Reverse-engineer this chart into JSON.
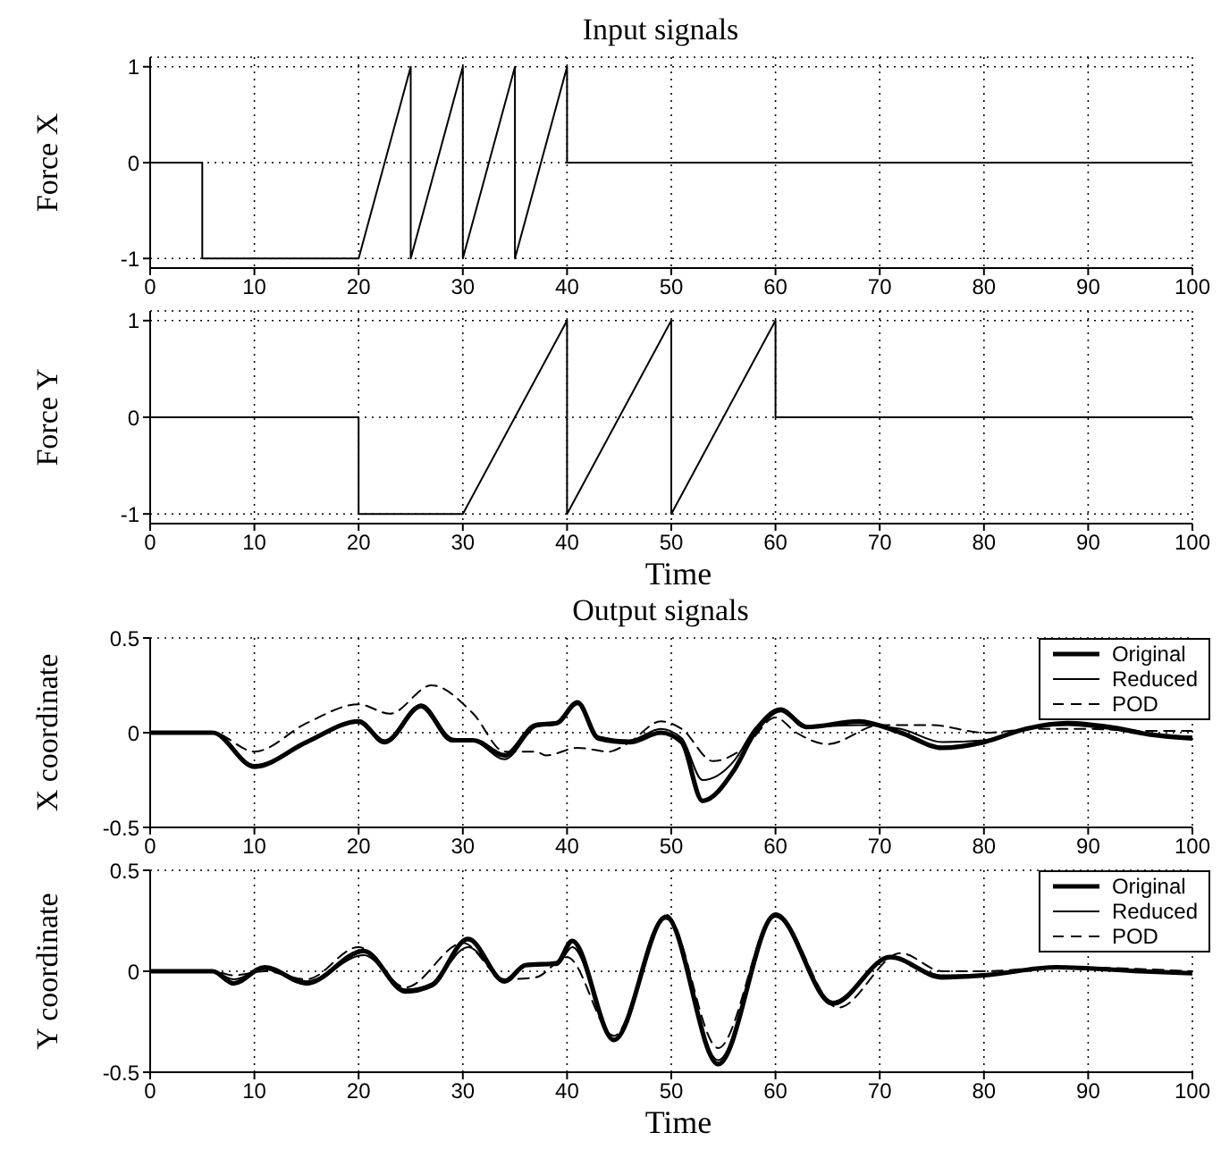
{
  "chart_data": [
    {
      "type": "line",
      "title": "Input signals",
      "ylabel": "Force X",
      "xlim": [
        0,
        100
      ],
      "xticks": [
        0,
        10,
        20,
        30,
        40,
        50,
        60,
        70,
        80,
        90,
        100
      ],
      "ylim": [
        -1.1,
        1.1
      ],
      "yticks": [
        -1,
        0,
        1
      ],
      "grid": true,
      "legend": false,
      "series": [
        {
          "color": "#000000",
          "line_style": "solid",
          "x": [
            0,
            5,
            5,
            20,
            25,
            25,
            30,
            30,
            35,
            35,
            40,
            40,
            100
          ],
          "values": [
            0,
            0,
            -1,
            -1,
            1,
            -1,
            1,
            -1,
            1,
            -1,
            1,
            0,
            0
          ]
        }
      ]
    },
    {
      "type": "line",
      "ylabel": "Force Y",
      "xlabel": "Time",
      "xlim": [
        0,
        100
      ],
      "xticks": [
        0,
        10,
        20,
        30,
        40,
        50,
        60,
        70,
        80,
        90,
        100
      ],
      "ylim": [
        -1.1,
        1.1
      ],
      "yticks": [
        -1,
        0,
        1
      ],
      "grid": true,
      "legend": false,
      "series": [
        {
          "color": "#000000",
          "line_style": "solid",
          "x": [
            0,
            20,
            20,
            30,
            40,
            40,
            50,
            50,
            60,
            60,
            100
          ],
          "values": [
            0,
            0,
            -1,
            -1,
            1,
            -1,
            1,
            -1,
            1,
            0,
            0
          ]
        }
      ]
    },
    {
      "type": "line",
      "title": "Output signals",
      "ylabel": "X coordinate",
      "xlim": [
        0,
        100
      ],
      "xticks": [
        0,
        10,
        20,
        30,
        40,
        50,
        60,
        70,
        80,
        90,
        100
      ],
      "ylim": [
        -0.5,
        0.5
      ],
      "yticks": [
        -0.5,
        0,
        0.5
      ],
      "grid": true,
      "legend": "top right",
      "series": [
        {
          "name": "Original",
          "color": "#000000",
          "line_style": "solid",
          "x": [
            0,
            6,
            10,
            15,
            20,
            22.5,
            26,
            29,
            31,
            34,
            37,
            39,
            41,
            43,
            46,
            49,
            51,
            53,
            56,
            58,
            60.5,
            63,
            68,
            72,
            76,
            80,
            84,
            88,
            92,
            96,
            100
          ],
          "values": [
            0,
            0,
            -0.18,
            -0.05,
            0.06,
            -0.05,
            0.14,
            -0.04,
            -0.04,
            -0.12,
            0.04,
            0.05,
            0.16,
            -0.03,
            -0.05,
            0,
            -0.05,
            -0.36,
            -0.2,
            0,
            0.12,
            0.03,
            0.06,
            0,
            -0.08,
            -0.05,
            0.02,
            0.05,
            0.03,
            -0.01,
            -0.03
          ]
        },
        {
          "name": "Reduced",
          "color": "#000000",
          "line_style": "solid",
          "x": [
            0,
            6,
            10,
            15,
            20,
            22.5,
            26,
            29,
            31,
            34,
            37,
            39,
            41,
            43,
            46,
            49,
            51,
            53,
            56,
            58,
            60.5,
            63,
            68,
            72,
            76,
            80,
            84,
            88,
            92,
            96,
            100
          ],
          "values": [
            0,
            0,
            -0.17,
            -0.05,
            0.06,
            -0.04,
            0.15,
            -0.03,
            -0.04,
            -0.14,
            0.03,
            0.05,
            0.15,
            -0.02,
            -0.04,
            0.02,
            -0.03,
            -0.25,
            -0.15,
            0.02,
            0.13,
            0.03,
            0.04,
            0.02,
            -0.05,
            -0.04,
            0.02,
            0.04,
            0.02,
            -0.01,
            -0.02
          ]
        },
        {
          "name": "POD",
          "color": "#000000",
          "line_style": "dashed",
          "x": [
            0,
            6,
            10,
            15,
            20,
            23,
            27,
            31,
            34,
            37,
            38,
            41,
            44,
            46,
            49,
            51,
            54,
            57,
            60,
            62,
            65,
            70,
            75,
            80,
            85,
            90,
            95,
            100
          ],
          "values": [
            0,
            0,
            -0.1,
            0.05,
            0.15,
            0.1,
            0.25,
            0.1,
            -0.1,
            -0.1,
            -0.12,
            -0.08,
            -0.1,
            -0.05,
            0.06,
            0.02,
            -0.15,
            -0.08,
            0.08,
            0,
            -0.06,
            0.04,
            0.04,
            0,
            0.02,
            0.02,
            0.01,
            0.01
          ]
        }
      ]
    },
    {
      "type": "line",
      "ylabel": "Y coordinate",
      "xlabel": "Time",
      "xlim": [
        0,
        100
      ],
      "xticks": [
        0,
        10,
        20,
        30,
        40,
        50,
        60,
        70,
        80,
        90,
        100
      ],
      "ylim": [
        -0.5,
        0.5
      ],
      "yticks": [
        -0.5,
        0,
        0.5
      ],
      "grid": true,
      "legend": "top right",
      "series": [
        {
          "name": "Original",
          "color": "#000000",
          "line_style": "solid",
          "x": [
            0,
            6,
            8,
            11,
            15,
            20.5,
            24.5,
            27,
            30.5,
            34,
            36,
            39,
            40.5,
            44.5,
            49.5,
            54.5,
            60,
            65.5,
            71,
            76,
            80,
            87,
            95,
            100
          ],
          "values": [
            0,
            0,
            -0.06,
            0.02,
            -0.06,
            0.1,
            -0.1,
            -0.07,
            0.16,
            -0.05,
            0.03,
            0.04,
            0.15,
            -0.34,
            0.27,
            -0.46,
            0.28,
            -0.16,
            0.07,
            -0.03,
            -0.02,
            0.02,
            0,
            -0.01
          ]
        },
        {
          "name": "Reduced",
          "color": "#000000",
          "line_style": "solid",
          "x": [
            0,
            6,
            8,
            11,
            15,
            20.5,
            24.5,
            27,
            30.5,
            34,
            36,
            39,
            40.5,
            44.5,
            49.5,
            54.5,
            60,
            65.5,
            71,
            76,
            80,
            87,
            95,
            100
          ],
          "values": [
            0,
            0,
            -0.04,
            0.01,
            -0.05,
            0.08,
            -0.09,
            -0.06,
            0.12,
            -0.04,
            0.03,
            0.03,
            0.12,
            -0.34,
            0.26,
            -0.44,
            0.27,
            -0.15,
            0.07,
            -0.02,
            -0.02,
            0.02,
            0,
            -0.01
          ]
        },
        {
          "name": "POD",
          "color": "#000000",
          "line_style": "dashed",
          "x": [
            0,
            6,
            8,
            11,
            15,
            20,
            24.5,
            30,
            34,
            37,
            40,
            44.5,
            49.5,
            54.5,
            60,
            66,
            72,
            76,
            80,
            87,
            100
          ],
          "values": [
            0,
            0,
            -0.02,
            0,
            -0.04,
            0.12,
            -0.08,
            0.14,
            -0.04,
            -0.03,
            0.07,
            -0.32,
            0.28,
            -0.38,
            0.28,
            -0.18,
            0.09,
            0,
            0,
            0.02,
            0
          ]
        }
      ]
    }
  ]
}
